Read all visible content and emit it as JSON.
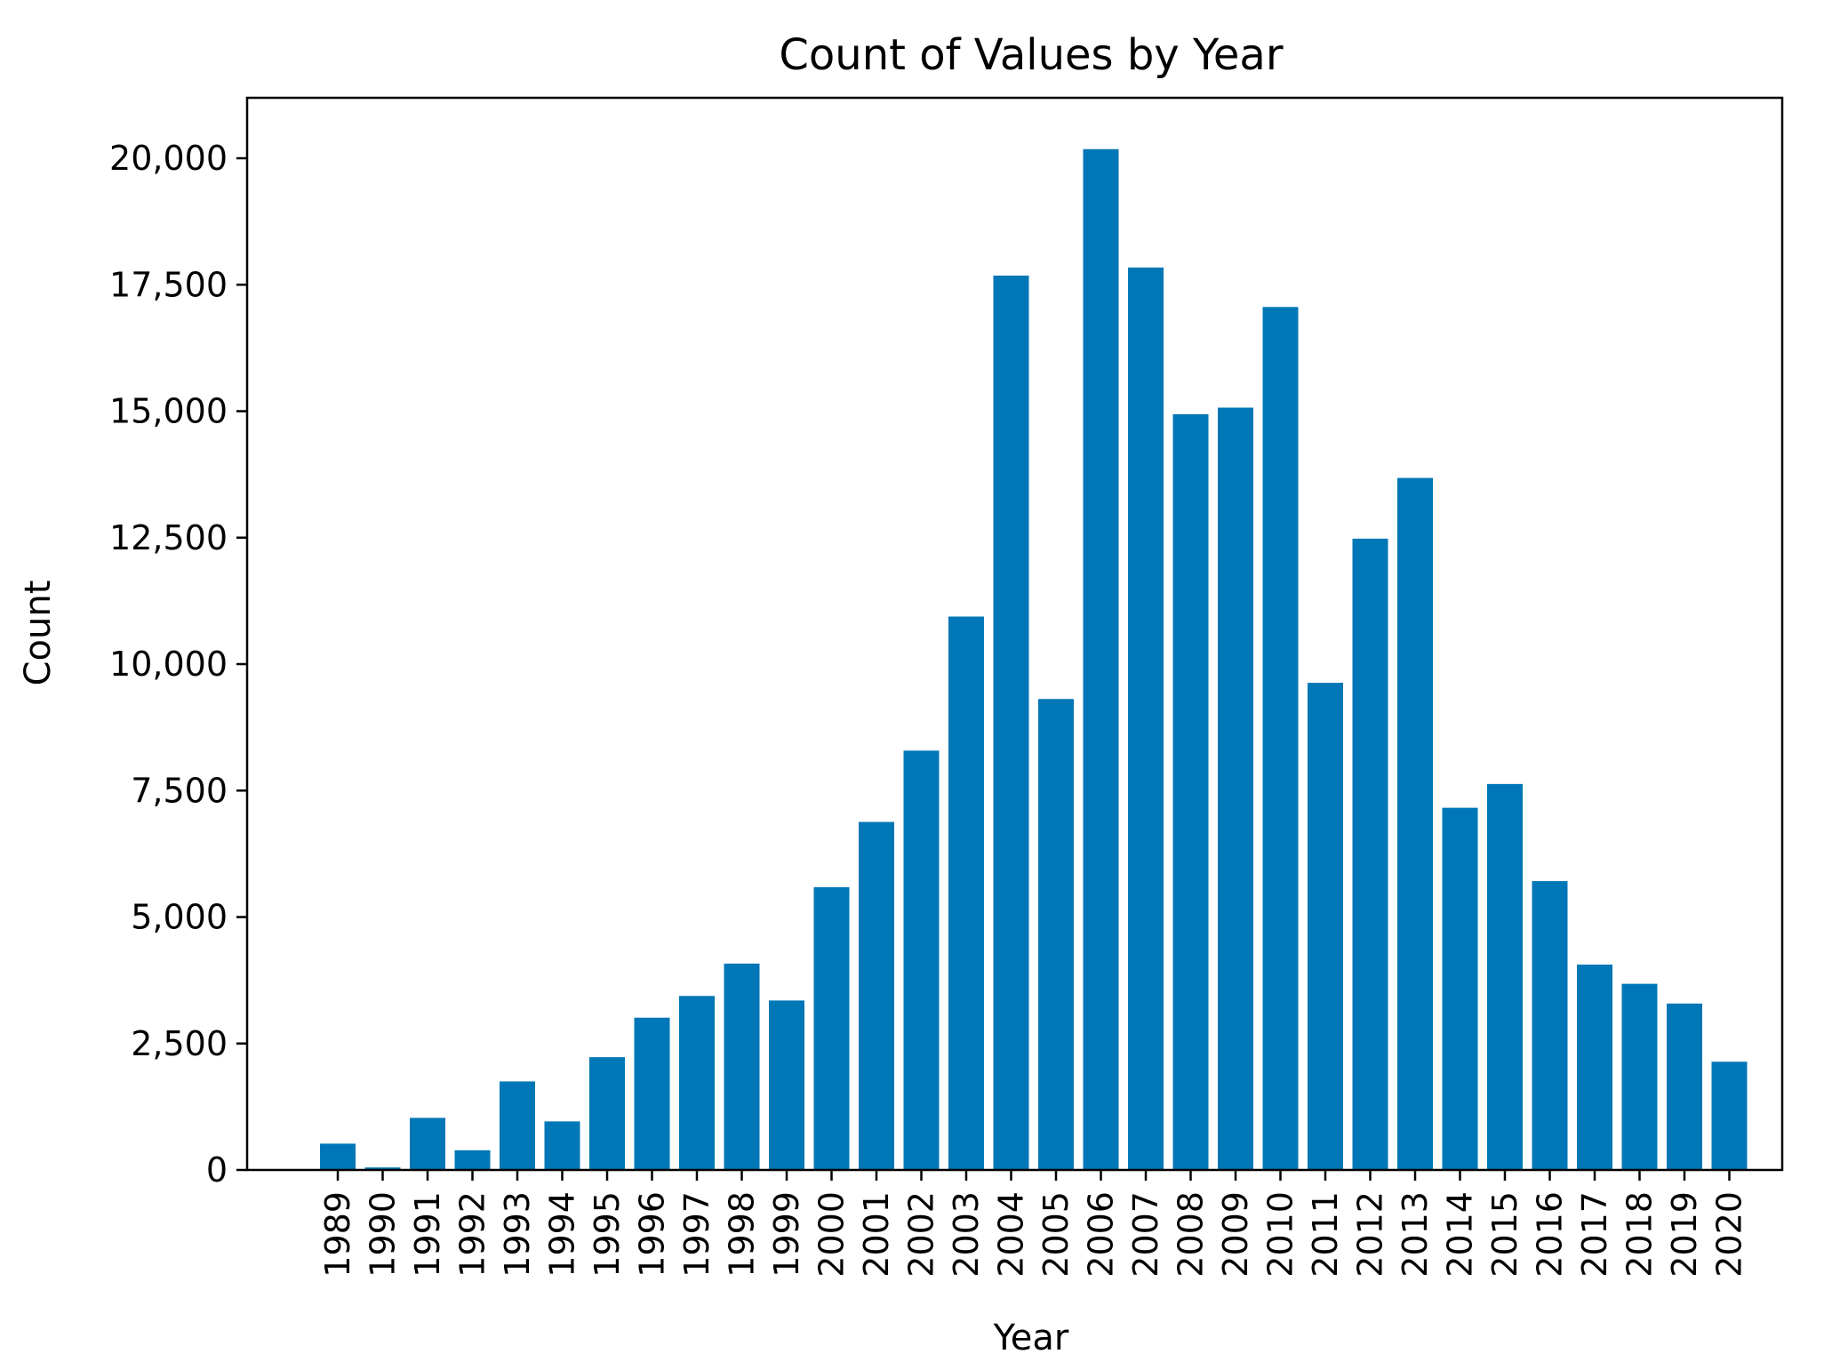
{
  "chart_data": {
    "type": "bar",
    "title": "Count of Values by Year",
    "xlabel": "Year",
    "ylabel": "Count",
    "ylim": [
      0,
      21200
    ],
    "yticks": [
      0,
      2500,
      5000,
      7500,
      10000,
      12500,
      15000,
      17500,
      20000
    ],
    "ytick_labels": [
      "0",
      "2,500",
      "5,000",
      "7,500",
      "10,000",
      "12,500",
      "15,000",
      "17,500",
      "20,000"
    ],
    "grid": false,
    "bar_color": "#0077b6",
    "categories": [
      "1989",
      "1990",
      "1991",
      "1992",
      "1993",
      "1994",
      "1995",
      "1996",
      "1997",
      "1998",
      "1999",
      "2000",
      "2001",
      "2002",
      "2003",
      "2004",
      "2005",
      "2006",
      "2007",
      "2008",
      "2009",
      "2010",
      "2011",
      "2012",
      "2013",
      "2014",
      "2015",
      "2016",
      "2017",
      "2018",
      "2019",
      "2020"
    ],
    "values": [
      520,
      50,
      1030,
      390,
      1750,
      960,
      2230,
      3010,
      3440,
      4080,
      3350,
      5590,
      6880,
      8290,
      10940,
      17680,
      9310,
      20180,
      17840,
      14940,
      15070,
      17060,
      9630,
      12480,
      13680,
      7160,
      7630,
      5710,
      4060,
      3680,
      3290,
      2140
    ]
  }
}
